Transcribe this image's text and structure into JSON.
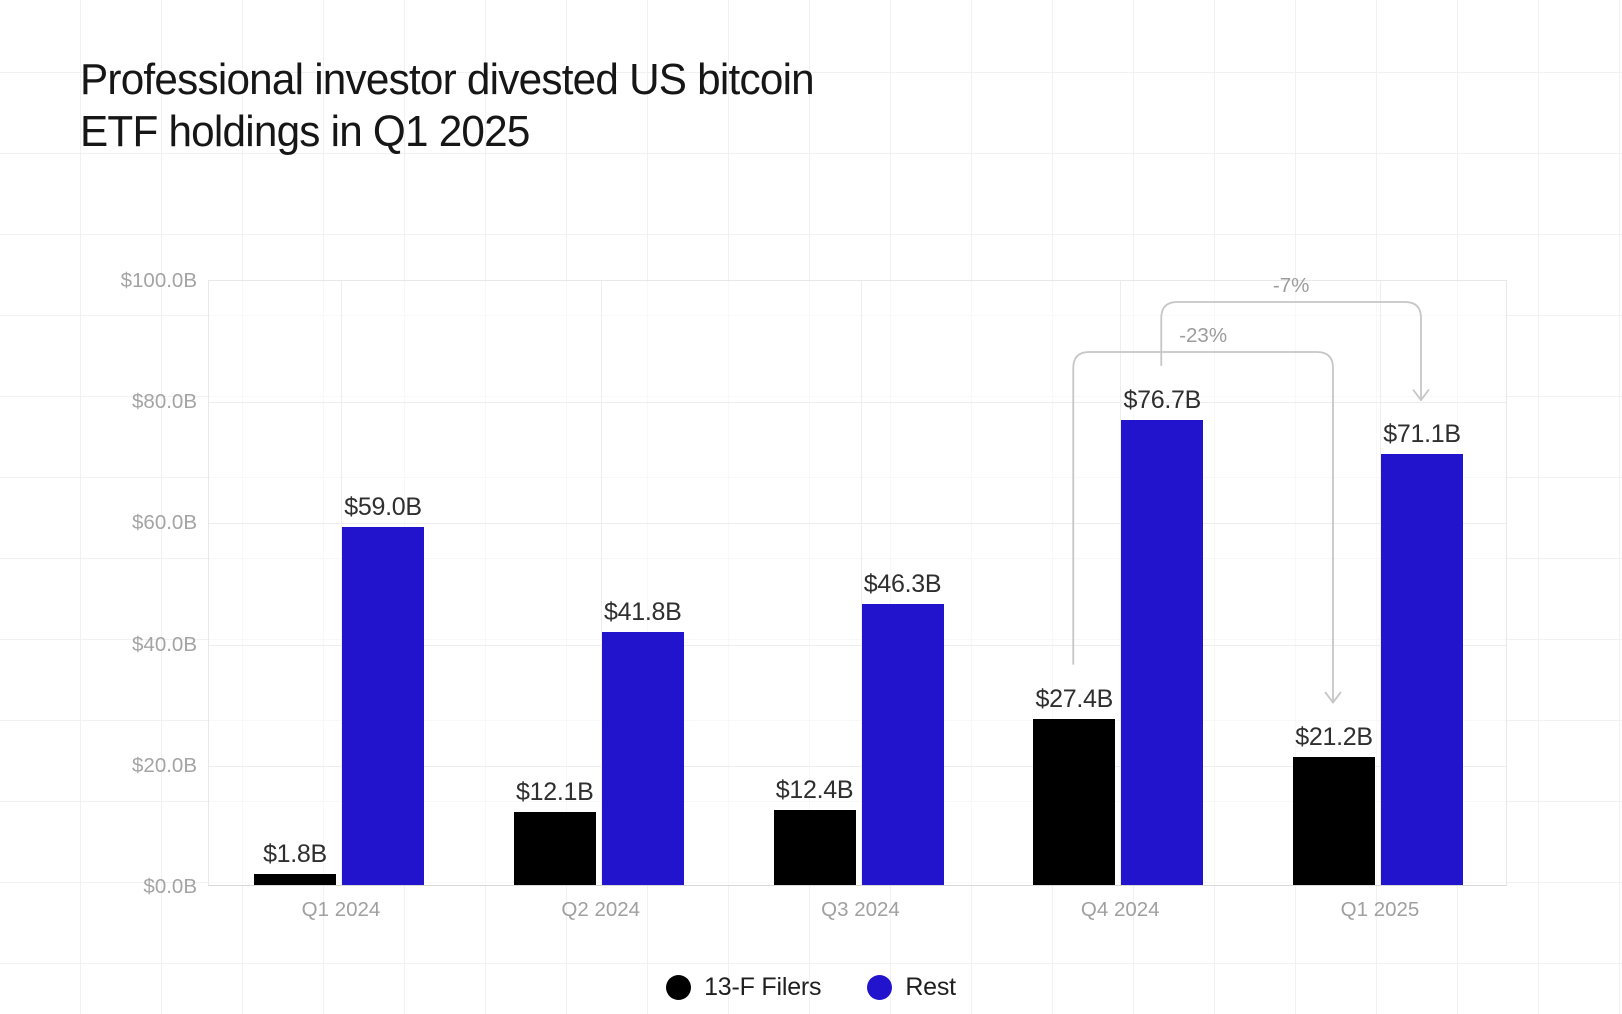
{
  "title": "Professional investor divested US bitcoin\nETF holdings in Q1 2025",
  "chart_data": {
    "type": "bar",
    "categories": [
      "Q1 2024",
      "Q2 2024",
      "Q3 2024",
      "Q4 2024",
      "Q1 2025"
    ],
    "series": [
      {
        "name": "13-F Filers",
        "color": "#000000",
        "values": [
          1.8,
          12.1,
          12.4,
          27.4,
          21.2
        ],
        "labels": [
          "$1.8B",
          "$12.1B",
          "$12.4B",
          "$27.4B",
          "$21.2B"
        ]
      },
      {
        "name": "Rest",
        "color": "#2213cc",
        "values": [
          59.0,
          41.8,
          46.3,
          76.7,
          71.1
        ],
        "labels": [
          "$59.0B",
          "$41.8B",
          "$46.3B",
          "$76.7B",
          "$71.1B"
        ]
      }
    ],
    "ylim": [
      0,
      100
    ],
    "y_ticks": [
      {
        "value": 0,
        "label": "$0.0B"
      },
      {
        "value": 20,
        "label": "$20.0B"
      },
      {
        "value": 40,
        "label": "$40.0B"
      },
      {
        "value": 60,
        "label": "$60.0B"
      },
      {
        "value": 80,
        "label": "$80.0B"
      },
      {
        "value": 100,
        "label": "$100.0B"
      }
    ],
    "grid": true,
    "legend_position": "bottom",
    "annotations": [
      {
        "label": "-23%",
        "series": "13-F Filers",
        "from_category": "Q4 2024",
        "to_category": "Q1 2025"
      },
      {
        "label": "-7%",
        "series": "Rest",
        "from_category": "Q4 2024",
        "to_category": "Q1 2025"
      }
    ]
  },
  "colors": {
    "annotation_line": "#c6c6c6",
    "annotation_text": "#9c9c9c",
    "axis_text": "#a4a4a4",
    "value_text": "#2f2f2f",
    "title_text": "#161616",
    "legend_text": "#1f1f1f",
    "plot_grid": "#ededed",
    "page_grid": "#f1f1f1"
  }
}
